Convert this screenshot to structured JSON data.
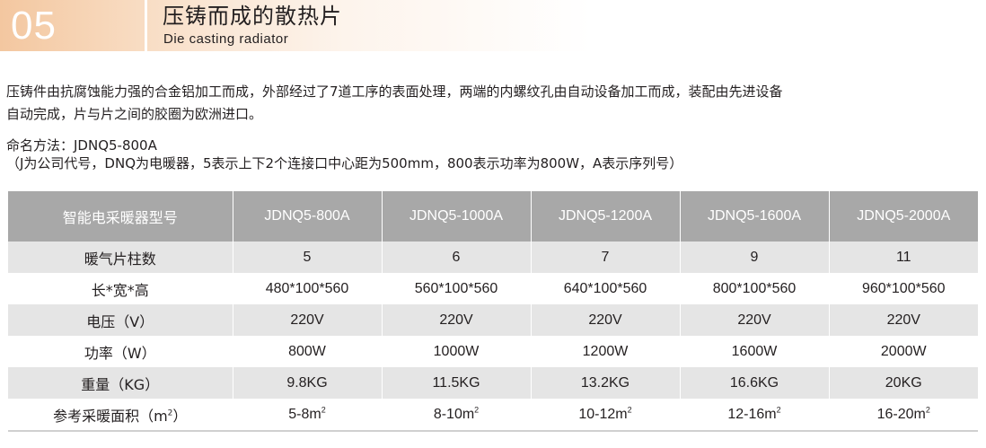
{
  "header": {
    "number": "05",
    "title_cn": "压铸而成的散热片",
    "title_en": "Die casting radiator"
  },
  "description": {
    "line1": "压铸件由抗腐蚀能力强的合金铝加工而成，外部经过了7道工序的表面处理，两端的内螺纹孔由自动设备加工而成，装配由先进设备",
    "line2": "自动完成，片与片之间的胶圈为欧洲进口。"
  },
  "naming": {
    "line1": "命名方法：JDNQ5-800A",
    "line2": "（J为公司代号，DNQ为电暖器，5表示上下2个连接口中心距为500mm，800表示功率为800W，A表示序列号）"
  },
  "table": {
    "header_label": "智能电采暖器型号",
    "models": [
      "JDNQ5-800A",
      "JDNQ5-1000A",
      "JDNQ5-1200A",
      "JDNQ5-1600A",
      "JDNQ5-2000A"
    ],
    "rows": [
      {
        "label": "暖气片柱数",
        "values": [
          "5",
          "6",
          "7",
          "9",
          "11"
        ]
      },
      {
        "label": "长*宽*高",
        "values": [
          "480*100*560",
          "560*100*560",
          "640*100*560",
          "800*100*560",
          "960*100*560"
        ]
      },
      {
        "label": "电压（V）",
        "values": [
          "220V",
          "220V",
          "220V",
          "220V",
          "220V"
        ]
      },
      {
        "label": "功率（W）",
        "values": [
          "800W",
          "1000W",
          "1200W",
          "1600W",
          "2000W"
        ]
      },
      {
        "label": "重量（KG）",
        "values": [
          "9.8KG",
          "11.5KG",
          "13.2KG",
          "16.6KG",
          "20KG"
        ]
      }
    ],
    "area_row": {
      "label": "参考采暖面积（m",
      "label_sup": "2",
      "label_end": "）",
      "values": [
        "5-8m",
        "8-10m",
        "10-12m",
        "12-16m",
        "16-20m"
      ],
      "unit_sup": "2"
    }
  },
  "colors": {
    "header_gradient_start": "#f3c7a0",
    "table_header_bg": "#a8a8a8",
    "table_stripe": "#e5e5e5",
    "text": "#231f20"
  }
}
